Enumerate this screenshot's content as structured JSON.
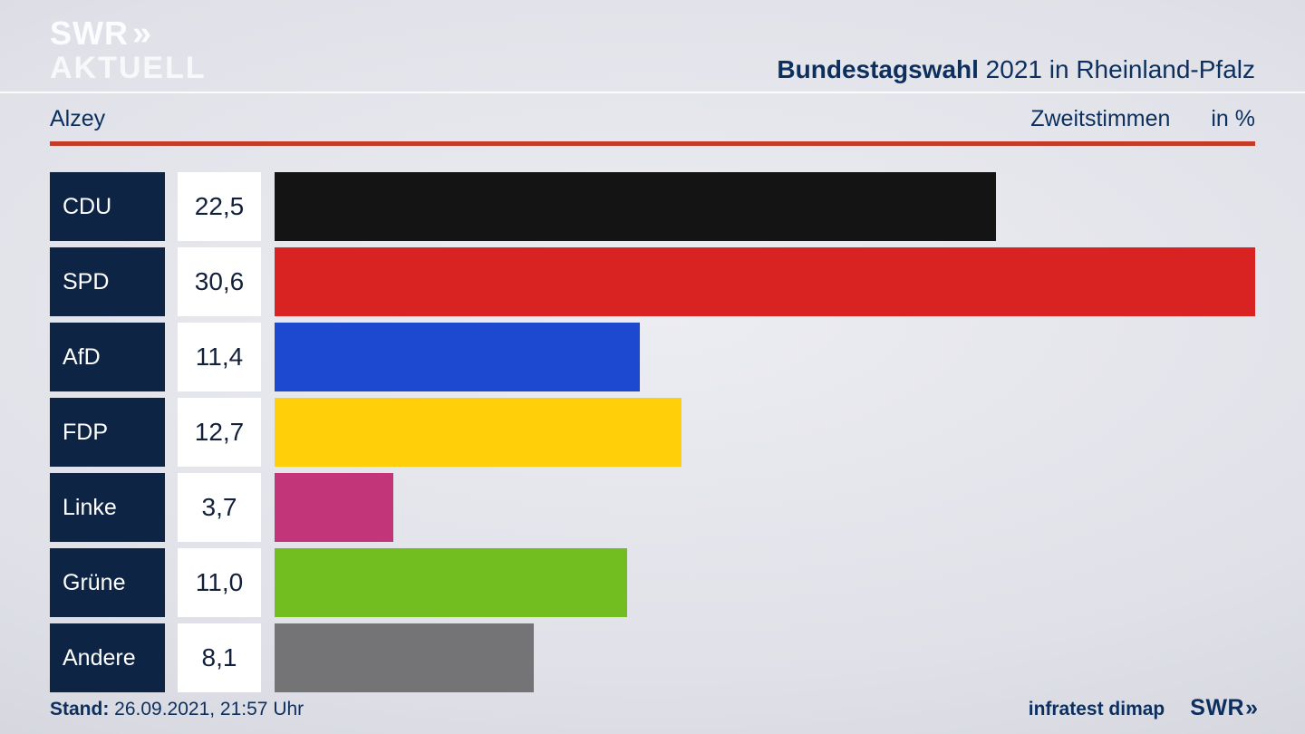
{
  "header": {
    "logo_line1": "SWR",
    "logo_chevrons": "»",
    "logo_line2": "AKTUELL",
    "title_bold": "Bundestagswahl",
    "title_rest": " 2021 in Rheinland-Pfalz"
  },
  "subheader": {
    "location": "Alzey",
    "vote_type": "Zweitstimmen",
    "unit": "in %"
  },
  "colors": {
    "navy_box": "#0e2444",
    "title_navy": "#0c2f5e",
    "red_rule": "#c43c28"
  },
  "chart_data": {
    "type": "bar",
    "orientation": "horizontal",
    "title": "Bundestagswahl 2021 in Rheinland-Pfalz — Alzey — Zweitstimmen in %",
    "categories": [
      "CDU",
      "SPD",
      "AfD",
      "FDP",
      "Linke",
      "Grüne",
      "Andere"
    ],
    "values": [
      22.5,
      30.6,
      11.4,
      12.7,
      3.7,
      11.0,
      8.1
    ],
    "value_labels": [
      "22,5",
      "30,6",
      "11,4",
      "12,7",
      "3,7",
      "11,0",
      "8,1"
    ],
    "bar_colors": [
      "#141414",
      "#d82322",
      "#1d49d0",
      "#ffd009",
      "#c23679",
      "#72bd1f",
      "#747477"
    ],
    "xlim": [
      0,
      30.6
    ],
    "grid": false,
    "legend": false
  },
  "footer": {
    "stand_label": "Stand:",
    "stand_value": " 26.09.2021, 21:57 Uhr",
    "source": "infratest dimap",
    "brand": "SWR",
    "brand_chevrons": "»"
  }
}
